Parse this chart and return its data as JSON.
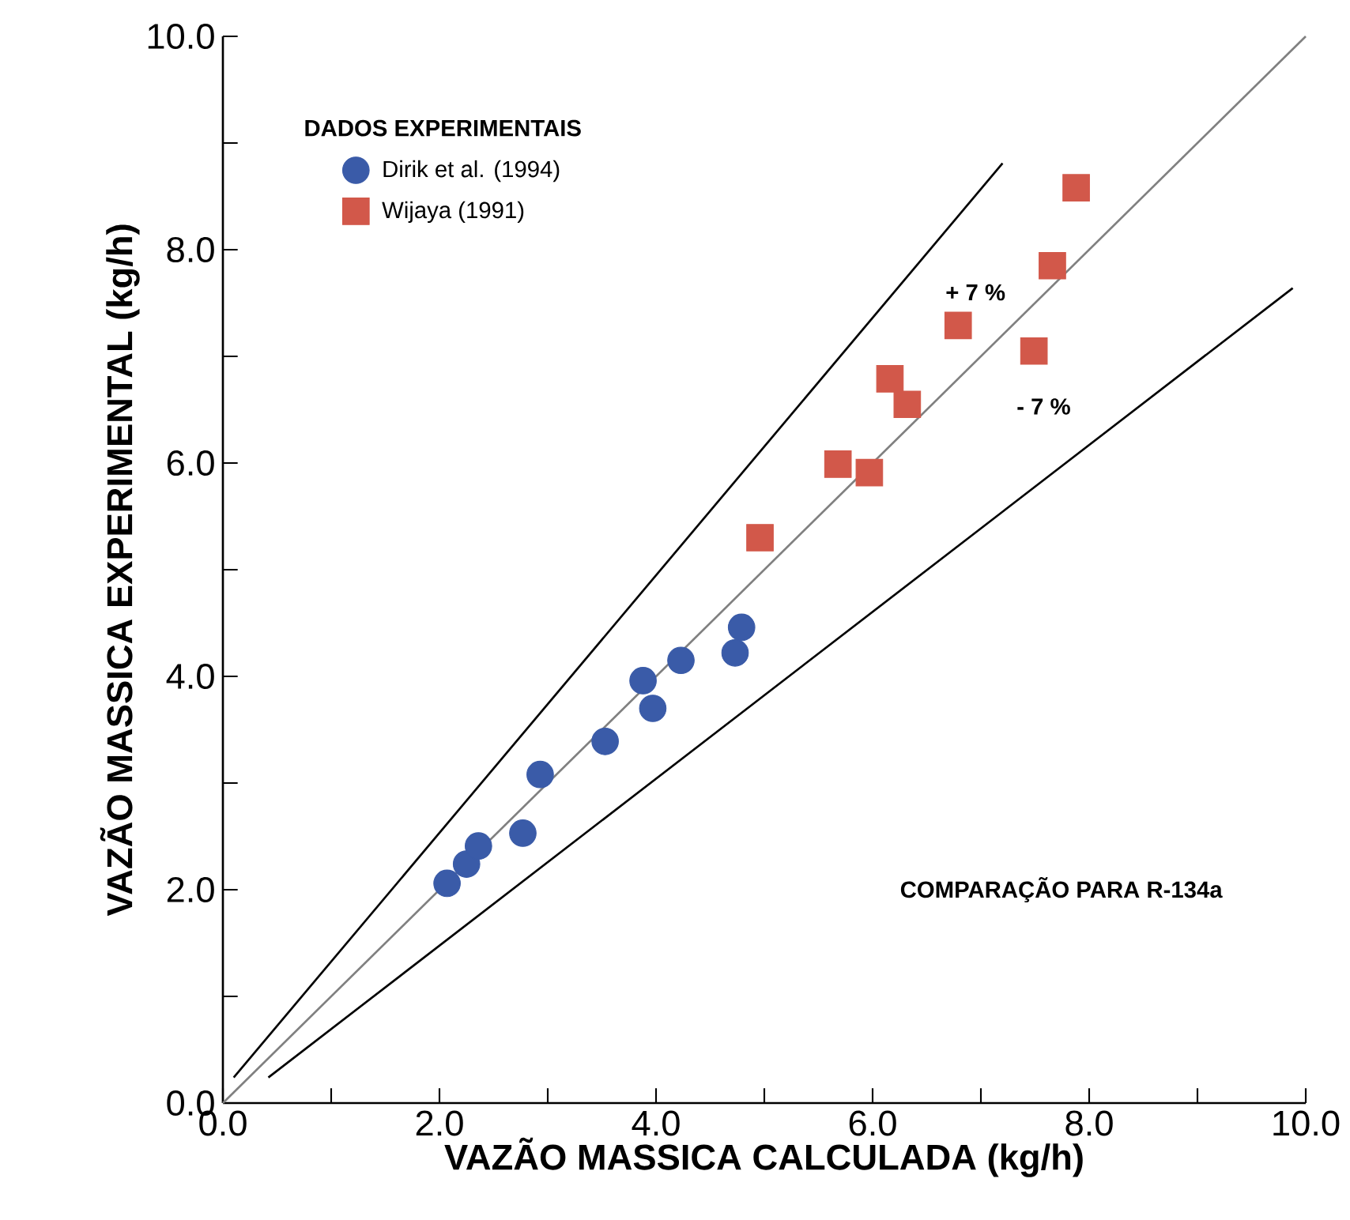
{
  "chart_data": {
    "type": "scatter",
    "xlabel": "VAZÃO MASSICA  CALCULADA (kg/h)",
    "ylabel": "VAZÃO MASSICA EXPERIMENTAL  (kg/h)",
    "legend_title": "DADOS EXPERIMENTAIS",
    "legend": "top left",
    "xlim": [
      0,
      10
    ],
    "ylim": [
      0,
      10
    ],
    "xticks": [
      {
        "value": 0,
        "label": "0.0"
      },
      {
        "value": 1,
        "label": null
      },
      {
        "value": 2,
        "label": "2.0"
      },
      {
        "value": 3,
        "label": null
      },
      {
        "value": 4,
        "label": "4.0"
      },
      {
        "value": 5,
        "label": null
      },
      {
        "value": 6,
        "label": "6.0"
      },
      {
        "value": 7,
        "label": null
      },
      {
        "value": 8,
        "label": "8.0"
      },
      {
        "value": 9,
        "label": null
      },
      {
        "value": 10,
        "label": "10.0"
      }
    ],
    "yticks": [
      {
        "value": 0,
        "label": "0.0"
      },
      {
        "value": 1,
        "label": null
      },
      {
        "value": 2,
        "label": "2.0"
      },
      {
        "value": 3,
        "label": null
      },
      {
        "value": 4,
        "label": "4.0"
      },
      {
        "value": 5,
        "label": null
      },
      {
        "value": 6,
        "label": "6.0"
      },
      {
        "value": 7,
        "label": null
      },
      {
        "value": 8,
        "label": "8.0"
      },
      {
        "value": 9,
        "label": null
      },
      {
        "value": 10,
        "label": "10.0"
      }
    ],
    "series": [
      {
        "type": "line",
        "color": "#808080",
        "line_style": "solid",
        "x": [
          0,
          10
        ],
        "values": [
          0,
          10
        ]
      },
      {
        "type": "line",
        "color": "#000000",
        "line_style": "solid",
        "x": [
          0.1,
          7.2
        ],
        "values": [
          0.24,
          8.81
        ]
      },
      {
        "type": "line",
        "color": "#000000",
        "line_style": "solid",
        "x": [
          0.42,
          9.88
        ],
        "values": [
          0.24,
          7.64
        ]
      },
      {
        "name": "Dirik et al. (1994)",
        "color": "#3a5ba8",
        "marker": "circle",
        "x": [
          2.07,
          2.25,
          2.36,
          2.77,
          2.93,
          3.53,
          3.88,
          3.97,
          4.23,
          4.73,
          4.79
        ],
        "values": [
          2.06,
          2.24,
          2.41,
          2.53,
          3.08,
          3.39,
          3.96,
          3.7,
          4.15,
          4.22,
          4.46
        ]
      },
      {
        "name": "Wijaya (1991)",
        "color": "#d2584a",
        "marker": "square",
        "x": [
          4.96,
          5.68,
          5.97,
          6.16,
          6.32,
          6.79,
          7.49,
          7.66,
          7.88
        ],
        "values": [
          5.3,
          5.99,
          5.91,
          6.79,
          6.55,
          7.29,
          7.05,
          7.85,
          8.58
        ]
      }
    ],
    "annotations": [
      "+ 7 %",
      "- 7 %",
      "COMPARAÇÃO PARA  R-134a"
    ]
  }
}
